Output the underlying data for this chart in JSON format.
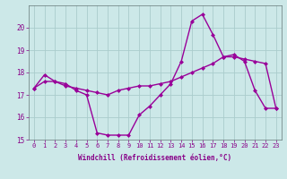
{
  "xlabel": "Windchill (Refroidissement éolien,°C)",
  "x": [
    0,
    1,
    2,
    3,
    4,
    5,
    6,
    7,
    8,
    9,
    10,
    11,
    12,
    13,
    14,
    15,
    16,
    17,
    18,
    19,
    20,
    21,
    22,
    23
  ],
  "line1": [
    17.3,
    17.9,
    17.6,
    17.5,
    17.2,
    17.0,
    15.3,
    15.2,
    15.2,
    15.2,
    16.1,
    16.5,
    17.0,
    17.5,
    18.5,
    20.3,
    20.6,
    19.7,
    18.7,
    18.8,
    18.5,
    17.2,
    16.4,
    16.4
  ],
  "line2": [
    17.3,
    17.6,
    17.6,
    17.4,
    17.3,
    17.2,
    17.1,
    17.0,
    17.2,
    17.3,
    17.4,
    17.4,
    17.5,
    17.6,
    17.8,
    18.0,
    18.2,
    18.4,
    18.7,
    18.7,
    18.6,
    18.5,
    18.4,
    16.4
  ],
  "line_color": "#990099",
  "bg_color": "#cce8e8",
  "grid_color": "#aacccc",
  "tick_color": "#880088",
  "ylim": [
    15.0,
    21.0
  ],
  "yticks": [
    15,
    16,
    17,
    18,
    19,
    20
  ],
  "marker": "D",
  "markersize": 2.0,
  "linewidth": 1.0,
  "tick_fontsize": 5.0,
  "label_fontsize": 5.5
}
